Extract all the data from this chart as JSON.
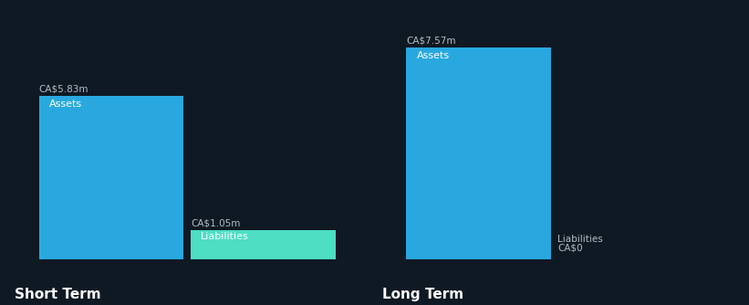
{
  "background_color": "#0f1923",
  "text_color": "#ffffff",
  "text_color_label": "#b0bec5",
  "short_term": {
    "label": "Short Term",
    "assets_value": 5.83,
    "assets_label": "CA$5.83m",
    "assets_inner": "Assets",
    "assets_color": "#29a8e0",
    "liabilities_value": 1.05,
    "liabilities_label": "CA$1.05m",
    "liabilities_inner": "Liabilities",
    "liabilities_color": "#4ddec4"
  },
  "long_term": {
    "label": "Long Term",
    "assets_value": 7.57,
    "assets_label": "CA$7.57m",
    "assets_inner": "Assets",
    "assets_color": "#29a8e0",
    "liabilities_value": 0.0,
    "liabilities_label": "CA$0",
    "liabilities_inner": "Liabilities"
  },
  "max_value": 8.5,
  "figsize": [
    8.21,
    3.34
  ],
  "dpi": 100
}
